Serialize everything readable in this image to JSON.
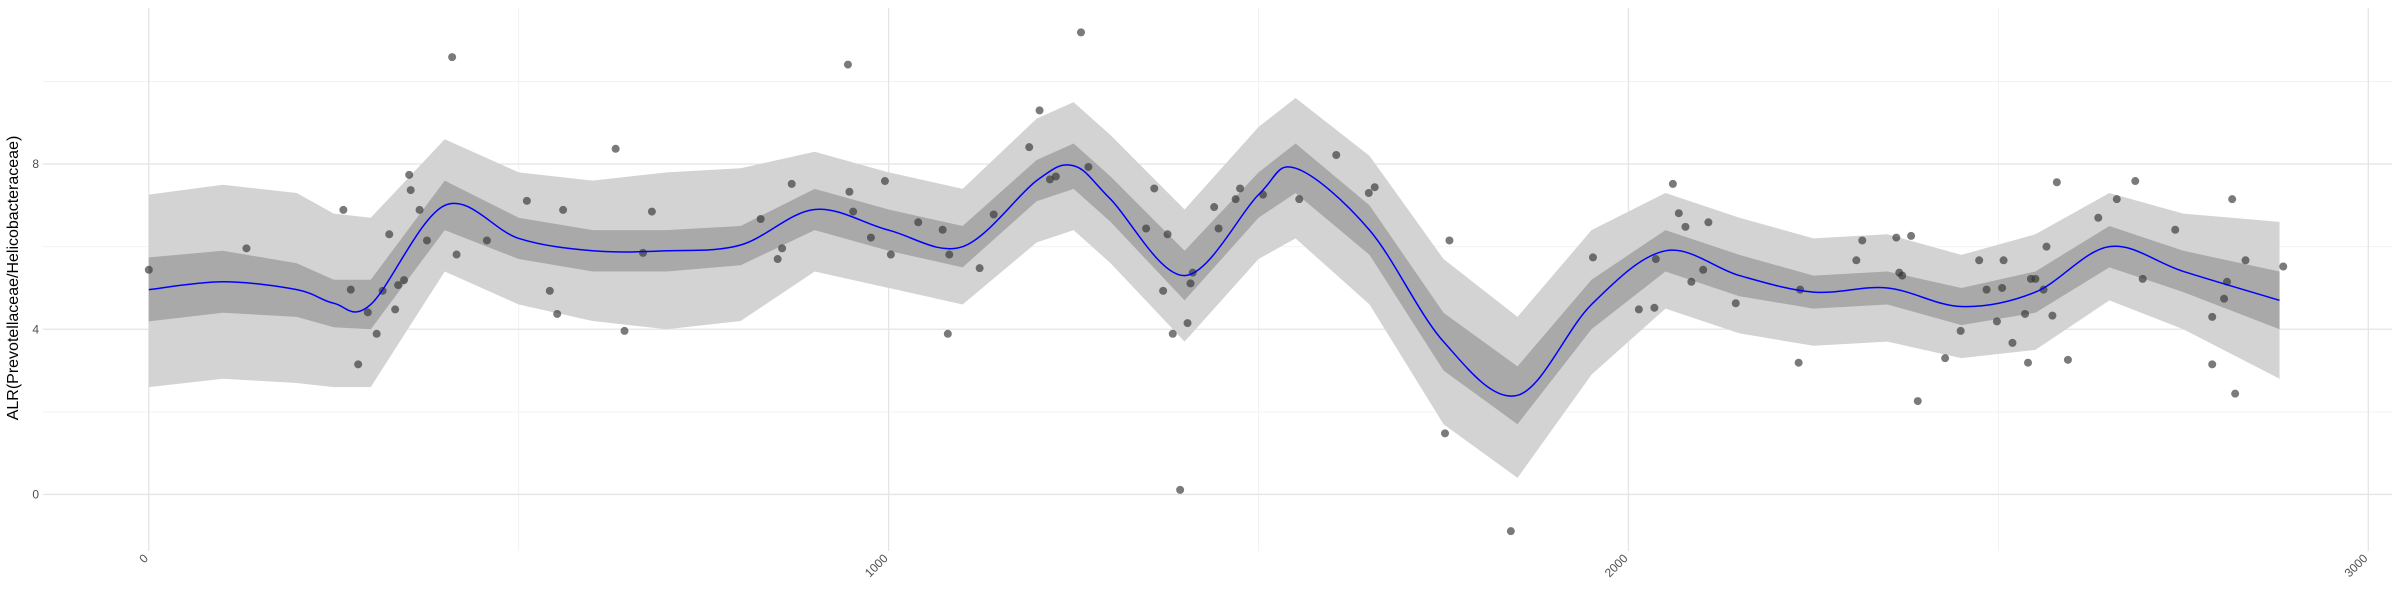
{
  "chart_data": {
    "type": "scatter",
    "y_label": "ALR(Prevotellaceae/Helicobacteraceae)",
    "xlim": [
      -143,
      3032
    ],
    "ylim": [
      -1.37,
      11.78
    ],
    "xticks": [
      0,
      1000,
      2000,
      3000
    ],
    "yticks": [
      0,
      4,
      8
    ],
    "minor_xticks": [
      500,
      1500,
      2500
    ],
    "minor_yticks": [
      2,
      6,
      10
    ],
    "grid": true,
    "point_color": "#333333",
    "line_color": "#0000ff",
    "inner_band_color": "#a9a9a9",
    "outer_band_color": "#d3d3d3",
    "points": {
      "x": [
        0,
        132,
        263,
        273,
        283,
        296,
        308,
        316,
        325,
        333,
        337,
        345,
        352,
        354,
        366,
        376,
        410,
        416,
        457,
        511,
        542,
        552,
        560,
        631,
        643,
        668,
        680,
        827,
        850,
        856,
        869,
        945,
        947,
        952,
        976,
        995,
        1003,
        1040,
        1073,
        1080,
        1082,
        1123,
        1142,
        1190,
        1204,
        1218,
        1226,
        1260,
        1270,
        1348,
        1359,
        1371,
        1377,
        1384,
        1394,
        1404,
        1408,
        1411,
        1440,
        1446,
        1469,
        1475,
        1506,
        1555,
        1605,
        1649,
        1657,
        1752,
        1758,
        1841,
        1952,
        2014,
        2037,
        2035,
        2060,
        2068,
        2077,
        2085,
        2101,
        2108,
        2145,
        2230,
        2232,
        2308,
        2316,
        2362,
        2366,
        2370,
        2382,
        2391,
        2428,
        2449,
        2474,
        2484,
        2498,
        2507,
        2505,
        2519,
        2536,
        2540,
        2544,
        2550,
        2561,
        2565,
        2573,
        2579,
        2594,
        2635,
        2660,
        2685,
        2695,
        2739,
        2789,
        2789,
        2805,
        2809,
        2816,
        2820,
        2834,
        2885
      ],
      "values": [
        5.44,
        5.96,
        6.89,
        4.96,
        3.15,
        4.41,
        3.89,
        4.93,
        6.3,
        4.48,
        5.07,
        5.19,
        7.74,
        7.37,
        6.89,
        6.15,
        10.59,
        5.81,
        6.15,
        7.11,
        4.93,
        4.37,
        6.89,
        8.37,
        3.96,
        5.85,
        6.85,
        6.67,
        5.7,
        5.96,
        7.52,
        10.41,
        7.33,
        6.85,
        6.22,
        7.59,
        5.81,
        6.59,
        6.41,
        3.89,
        5.81,
        5.48,
        6.78,
        8.41,
        9.3,
        7.63,
        7.7,
        11.19,
        7.93,
        6.44,
        7.41,
        4.93,
        6.3,
        3.89,
        0.11,
        4.15,
        5.11,
        5.37,
        6.96,
        6.44,
        7.15,
        7.41,
        7.26,
        7.15,
        8.22,
        7.3,
        7.44,
        1.48,
        6.15,
        -0.89,
        5.74,
        4.48,
        5.7,
        4.52,
        7.52,
        6.81,
        6.48,
        5.15,
        5.44,
        6.59,
        4.63,
        3.19,
        4.96,
        5.67,
        6.15,
        6.22,
        5.37,
        5.3,
        6.26,
        2.26,
        3.3,
        3.96,
        5.67,
        4.96,
        4.19,
        5.67,
        5.0,
        3.67,
        4.37,
        3.19,
        5.22,
        5.22,
        4.96,
        6.0,
        4.33,
        7.56,
        3.26,
        6.7,
        7.15,
        7.59,
        5.22,
        6.41,
        3.15,
        4.3,
        4.74,
        5.15,
        7.15,
        2.44,
        5.67,
        5.52
      ]
    },
    "fit": {
      "x": [
        0,
        100,
        200,
        250,
        300,
        400,
        500,
        600,
        700,
        800,
        900,
        1000,
        1100,
        1200,
        1250,
        1300,
        1400,
        1500,
        1550,
        1650,
        1750,
        1850,
        1950,
        2050,
        2150,
        2250,
        2350,
        2450,
        2550,
        2650,
        2750,
        2880
      ],
      "values": [
        4.96,
        5.15,
        4.96,
        4.63,
        4.6,
        7.0,
        6.2,
        5.9,
        5.9,
        6.04,
        6.9,
        6.4,
        6.0,
        7.6,
        7.96,
        7.15,
        5.3,
        7.26,
        7.9,
        6.4,
        3.7,
        2.4,
        4.6,
        5.9,
        5.3,
        4.9,
        5.0,
        4.55,
        4.9,
        6.0,
        5.4,
        4.7
      ],
      "inner_upper": [
        5.74,
        5.9,
        5.6,
        5.2,
        5.2,
        7.6,
        6.7,
        6.4,
        6.4,
        6.5,
        7.4,
        6.9,
        6.5,
        8.1,
        8.5,
        7.7,
        5.9,
        7.8,
        8.5,
        7.0,
        4.4,
        3.1,
        5.2,
        6.4,
        5.8,
        5.3,
        5.4,
        5.0,
        5.4,
        6.5,
        5.9,
        5.4
      ],
      "inner_lower": [
        4.19,
        4.4,
        4.3,
        4.05,
        4.0,
        6.4,
        5.7,
        5.4,
        5.4,
        5.55,
        6.4,
        5.9,
        5.5,
        7.1,
        7.4,
        6.6,
        4.7,
        6.7,
        7.3,
        5.8,
        3.0,
        1.7,
        4.0,
        5.4,
        4.8,
        4.5,
        4.6,
        4.1,
        4.4,
        5.5,
        4.9,
        4.0
      ],
      "outer_upper": [
        7.26,
        7.5,
        7.3,
        6.8,
        6.7,
        8.6,
        7.8,
        7.6,
        7.8,
        7.9,
        8.3,
        7.8,
        7.4,
        9.1,
        9.5,
        8.7,
        6.9,
        8.9,
        9.6,
        8.2,
        5.7,
        4.3,
        6.4,
        7.3,
        6.7,
        6.2,
        6.3,
        5.8,
        6.3,
        7.3,
        6.8,
        6.6
      ],
      "outer_lower": [
        2.6,
        2.8,
        2.7,
        2.6,
        2.6,
        5.4,
        4.6,
        4.2,
        4.0,
        4.2,
        5.4,
        5.0,
        4.6,
        6.1,
        6.4,
        5.6,
        3.7,
        5.7,
        6.2,
        4.6,
        1.7,
        0.4,
        2.9,
        4.5,
        3.9,
        3.6,
        3.7,
        3.3,
        3.5,
        4.7,
        4.0,
        2.8
      ]
    }
  }
}
